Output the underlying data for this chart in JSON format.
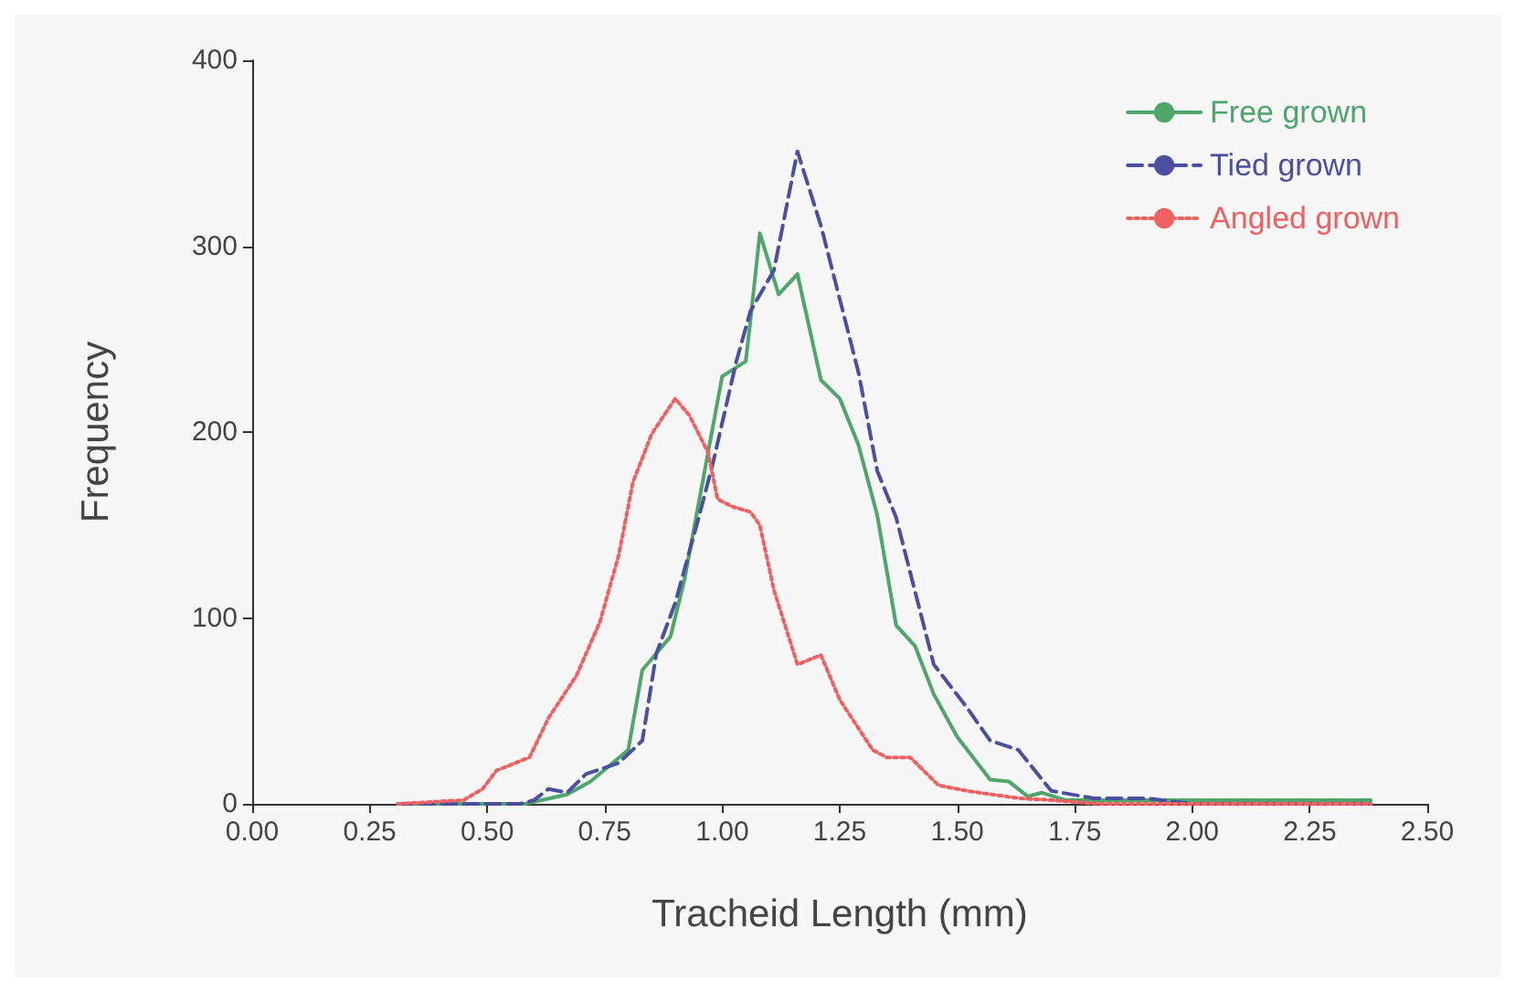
{
  "chart_data": {
    "type": "line",
    "xlabel": "Tracheid Length (mm)",
    "ylabel": "Frequency",
    "xlim": [
      0,
      2.5
    ],
    "ylim": [
      0,
      400
    ],
    "xticks": [
      {
        "value": 0,
        "label": "0.00"
      },
      {
        "value": 0.25,
        "label": "0.25"
      },
      {
        "value": 0.5,
        "label": "0.50"
      },
      {
        "value": 0.75,
        "label": "0.75"
      },
      {
        "value": 1,
        "label": "1.00"
      },
      {
        "value": 1.25,
        "label": "1.25"
      },
      {
        "value": 1.5,
        "label": "1.50"
      },
      {
        "value": 1.75,
        "label": "1.75"
      },
      {
        "value": 2,
        "label": "2.00"
      },
      {
        "value": 2.25,
        "label": "2.25"
      },
      {
        "value": 2.5,
        "label": "2.50"
      }
    ],
    "yticks": [
      0,
      100,
      200,
      300,
      400
    ],
    "grid": false,
    "legend": "top right",
    "marker": "none",
    "series": [
      {
        "name": "Free grown",
        "color": "#4ea66a",
        "line_style": "solid",
        "x": [
          0.31,
          0.58,
          0.67,
          0.72,
          0.8,
          0.83,
          0.89,
          0.92,
          1.0,
          1.05,
          1.06,
          1.08,
          1.12,
          1.16,
          1.21,
          1.25,
          1.29,
          1.33,
          1.37,
          1.41,
          1.45,
          1.5,
          1.57,
          1.61,
          1.65,
          1.68,
          1.73,
          2.38
        ],
        "values": [
          0,
          0,
          5,
          12,
          29,
          72,
          90,
          121,
          230,
          238,
          260,
          307,
          274,
          285,
          228,
          218,
          193,
          155,
          96,
          85,
          59,
          36,
          13,
          12,
          4,
          6,
          2,
          2
        ]
      },
      {
        "name": "Tied grown",
        "color": "#4a4fa0",
        "line_style": "dashed",
        "x": [
          0.31,
          0.57,
          0.6,
          0.63,
          0.67,
          0.71,
          0.78,
          0.83,
          0.86,
          0.9,
          0.95,
          0.98,
          1.03,
          1.06,
          1.11,
          1.16,
          1.21,
          1.29,
          1.33,
          1.37,
          1.45,
          1.52,
          1.57,
          1.63,
          1.7,
          1.79,
          1.9,
          2.0,
          2.38
        ],
        "values": [
          0,
          0,
          2,
          8,
          6,
          16,
          22,
          34,
          81,
          108,
          154,
          183,
          238,
          265,
          287,
          351,
          311,
          232,
          179,
          154,
          75,
          52,
          34,
          29,
          7,
          3,
          3,
          0,
          0
        ]
      },
      {
        "name": "Angled grown",
        "color": "#f06060",
        "line_style": "dotted",
        "x": [
          0.31,
          0.45,
          0.49,
          0.52,
          0.59,
          0.63,
          0.69,
          0.74,
          0.78,
          0.81,
          0.85,
          0.9,
          0.93,
          0.97,
          0.99,
          1.02,
          1.06,
          1.08,
          1.11,
          1.16,
          1.21,
          1.25,
          1.32,
          1.35,
          1.4,
          1.46,
          1.52,
          1.63,
          1.7,
          1.8,
          2.38
        ],
        "values": [
          0,
          2,
          8,
          18,
          25,
          46,
          69,
          98,
          134,
          173,
          199,
          218,
          209,
          189,
          164,
          160,
          157,
          150,
          115,
          75,
          80,
          56,
          29,
          25,
          25,
          10,
          7,
          3,
          2,
          0,
          0
        ]
      }
    ]
  }
}
